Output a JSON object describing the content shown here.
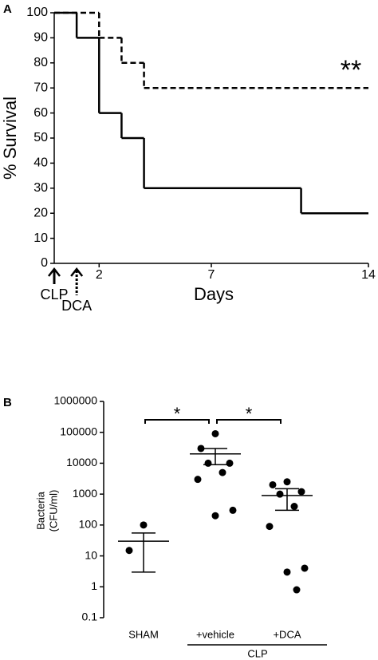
{
  "chart_data": [
    {
      "type": "step",
      "panel_label": "A",
      "ylabel": "% Survival",
      "xlabel": "Days",
      "xlim": [
        0,
        14
      ],
      "xticks": [
        2,
        7,
        14
      ],
      "ylim": [
        0,
        100
      ],
      "yticks": [
        0,
        10,
        20,
        30,
        40,
        50,
        60,
        70,
        80,
        90,
        100
      ],
      "series": [
        {
          "color": "#000000",
          "dashed": false,
          "x": [
            0,
            1,
            2,
            3,
            4,
            11
          ],
          "values": [
            100,
            90,
            60,
            50,
            30,
            20
          ]
        },
        {
          "color": "#000000",
          "dashed": true,
          "x": [
            0,
            2,
            3,
            4
          ],
          "values": [
            100,
            90,
            80,
            70
          ]
        }
      ],
      "annotations": [
        "**"
      ],
      "arrows": [
        {
          "text": "CLP",
          "x": 0,
          "style": "solid"
        },
        {
          "text": "DCA",
          "x": 1,
          "style": "dotted"
        }
      ]
    },
    {
      "type": "scatter",
      "panel_label": "B",
      "ylabel": [
        "Bacteria",
        "(CFU/ml)"
      ],
      "log_y": true,
      "ylim": [
        0.1,
        1000000
      ],
      "yticks": [
        0.1,
        1,
        10,
        100,
        1000,
        10000,
        100000,
        1000000
      ],
      "categories": [
        "SHAM",
        "+vehicle",
        "+DCA"
      ],
      "group": {
        "label": "CLP",
        "members": [
          1,
          2
        ]
      },
      "color": "#000000",
      "groups": [
        {
          "values": [
            100,
            15
          ],
          "mean": 30,
          "lower": 3,
          "upper": 55
        },
        {
          "values": [
            90000,
            30000,
            10000,
            10000,
            5000,
            3000,
            300,
            200
          ],
          "mean": 20000,
          "lower": 9000,
          "upper": 30000
        },
        {
          "values": [
            2500,
            2000,
            1200,
            1000,
            400,
            90,
            4,
            3,
            0.8
          ],
          "mean": 900,
          "lower": 300,
          "upper": 1500
        }
      ],
      "brackets": [
        {
          "from": 0,
          "to": 1,
          "text": "*"
        },
        {
          "from": 1,
          "to": 2,
          "text": "*"
        }
      ]
    }
  ]
}
